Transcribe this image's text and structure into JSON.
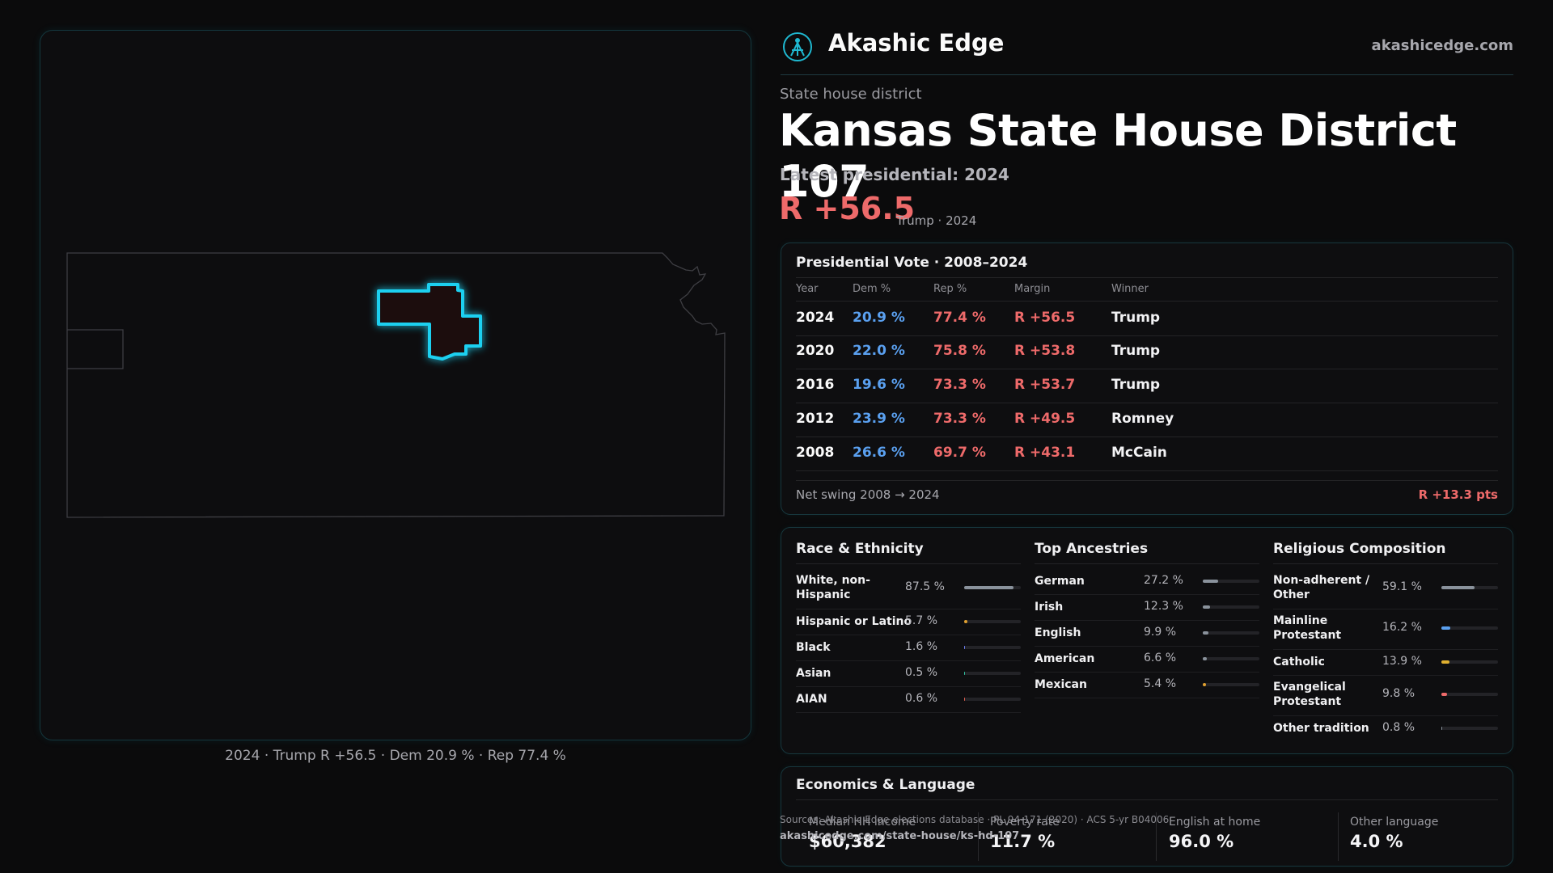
{
  "brand": {
    "name": "Akashic Edge",
    "url": "akashicedge.com"
  },
  "colors": {
    "accent": "#20d0f0",
    "dem": "#5aa0f0",
    "rep": "#ee6a6a",
    "background": "#0b0b0c"
  },
  "district": {
    "type": "State house district",
    "title": "Kansas State House District 107",
    "latest_label": "Latest presidential: 2024",
    "margin": "R +56.5",
    "margin_note": "Trump · 2024"
  },
  "map": {
    "caption": "2024 · Trump R +56.5 · Dem 20.9 % · Rep 77.4 %"
  },
  "presidential": {
    "title": "Presidential Vote · 2008–2024",
    "headers": {
      "year": "Year",
      "dem": "Dem %",
      "rep": "Rep %",
      "margin": "Margin",
      "winner": "Winner"
    },
    "rows": [
      {
        "year": "2024",
        "dem": "20.9 %",
        "rep": "77.4 %",
        "margin": "R +56.5",
        "winner": "Trump"
      },
      {
        "year": "2020",
        "dem": "22.0 %",
        "rep": "75.8 %",
        "margin": "R +53.8",
        "winner": "Trump"
      },
      {
        "year": "2016",
        "dem": "19.6 %",
        "rep": "73.3 %",
        "margin": "R +53.7",
        "winner": "Trump"
      },
      {
        "year": "2012",
        "dem": "23.9 %",
        "rep": "73.3 %",
        "margin": "R +49.5",
        "winner": "Romney"
      },
      {
        "year": "2008",
        "dem": "26.6 %",
        "rep": "69.7 %",
        "margin": "R +43.1",
        "winner": "McCain"
      }
    ],
    "swing_label": "Net swing 2008 → 2024",
    "swing_value": "R +13.3 pts"
  },
  "race": {
    "title": "Race & Ethnicity",
    "items": [
      {
        "label": "White, non-Hispanic",
        "value": "87.5 %",
        "share": 0.875,
        "color": "#8a929c"
      },
      {
        "label": "Hispanic or Latino",
        "value": "5.7 %",
        "share": 0.057,
        "color": "#e0a030"
      },
      {
        "label": "Black",
        "value": "1.6 %",
        "share": 0.016,
        "color": "#6a7cf0"
      },
      {
        "label": "Asian",
        "value": "0.5 %",
        "share": 0.005,
        "color": "#30c0a0"
      },
      {
        "label": "AIAN",
        "value": "0.6 %",
        "share": 0.006,
        "color": "#e06050"
      }
    ]
  },
  "ancestry": {
    "title": "Top Ancestries",
    "items": [
      {
        "label": "German",
        "value": "27.2 %",
        "share": 0.272,
        "color": "#8a929c"
      },
      {
        "label": "Irish",
        "value": "12.3 %",
        "share": 0.123,
        "color": "#8a929c"
      },
      {
        "label": "English",
        "value": "9.9 %",
        "share": 0.099,
        "color": "#8a929c"
      },
      {
        "label": "American",
        "value": "6.6 %",
        "share": 0.066,
        "color": "#8a929c"
      },
      {
        "label": "Mexican",
        "value": "5.4 %",
        "share": 0.054,
        "color": "#e0a030"
      }
    ]
  },
  "religion": {
    "title": "Religious Composition",
    "items": [
      {
        "label": "Non-adherent / Other",
        "value": "59.1 %",
        "share": 0.591,
        "color": "#8a929c"
      },
      {
        "label": "Mainline Protestant",
        "value": "16.2 %",
        "share": 0.162,
        "color": "#5aa0f0"
      },
      {
        "label": "Catholic",
        "value": "13.9 %",
        "share": 0.139,
        "color": "#e0b030"
      },
      {
        "label": "Evangelical Protestant",
        "value": "9.8 %",
        "share": 0.098,
        "color": "#ee6a6a"
      },
      {
        "label": "Other tradition",
        "value": "0.8 %",
        "share": 0.008,
        "color": "#8a929c"
      }
    ]
  },
  "economics": {
    "title": "Economics & Language",
    "stats": [
      {
        "label": "Median HH income",
        "value": "$60,382"
      },
      {
        "label": "Poverty rate",
        "value": "11.7 %"
      },
      {
        "label": "English at home",
        "value": "96.0 %"
      },
      {
        "label": "Other language",
        "value": "4.0 %"
      }
    ]
  },
  "source": {
    "line": "Sources: Akashic Edge elections database · PL 94-171 (2020) · ACS 5-yr B04006",
    "url": "akashicedge.com/state-house/ks-hd-107"
  }
}
